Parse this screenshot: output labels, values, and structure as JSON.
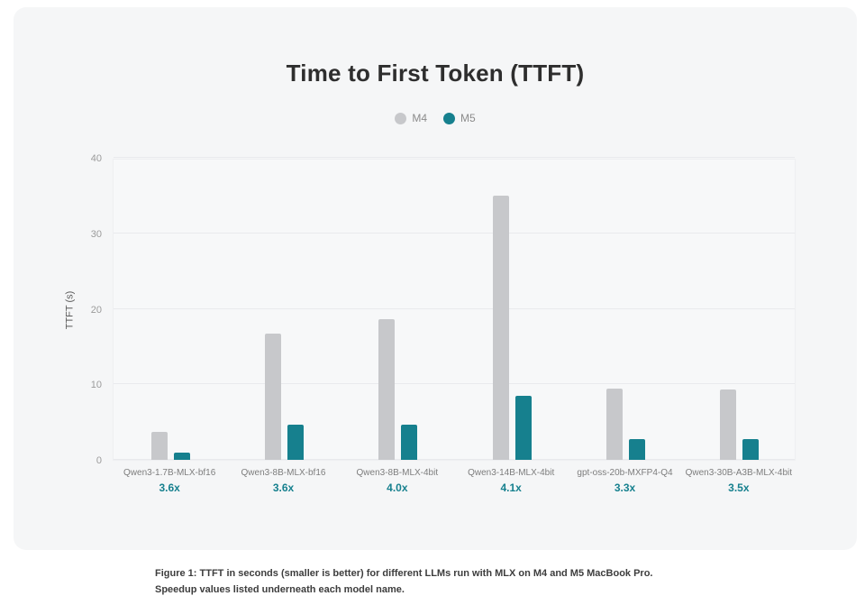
{
  "caption": {
    "text": "Figure 1: TTFT in seconds (smaller is better) for different LLMs run with MLX on M4 and M5 MacBook Pro. Speedup values listed underneath each model name."
  },
  "chart_data": {
    "type": "bar",
    "title": "Time to First Token (TTFT)",
    "xlabel": "",
    "ylabel": "TTFT (s)",
    "ylim": [
      0,
      40
    ],
    "yticks": [
      0,
      10,
      20,
      30,
      40
    ],
    "grid": true,
    "legend_position": "top-center",
    "categories": [
      "Qwen3-1.7B-MLX-bf16",
      "Qwen3-8B-MLX-bf16",
      "Qwen3-8B-MLX-4bit",
      "Qwen3-14B-MLX-4bit",
      "gpt-oss-20b-MXFP4-Q4",
      "Qwen3-30B-A3B-MLX-4bit"
    ],
    "speedup_labels": [
      "3.6x",
      "3.6x",
      "4.0x",
      "4.1x",
      "3.3x",
      "3.5x"
    ],
    "series": [
      {
        "name": "M4",
        "color": "#c7c8cb",
        "values": [
          3.7,
          16.7,
          18.6,
          35.0,
          9.4,
          9.3
        ]
      },
      {
        "name": "M5",
        "color": "#16808e",
        "values": [
          1.0,
          4.6,
          4.6,
          8.5,
          2.8,
          2.7
        ]
      }
    ],
    "colors": {
      "speedup_text": "#16808e",
      "legend_text": "#8b8b8b",
      "axis_text": "#9b9b9b"
    }
  }
}
